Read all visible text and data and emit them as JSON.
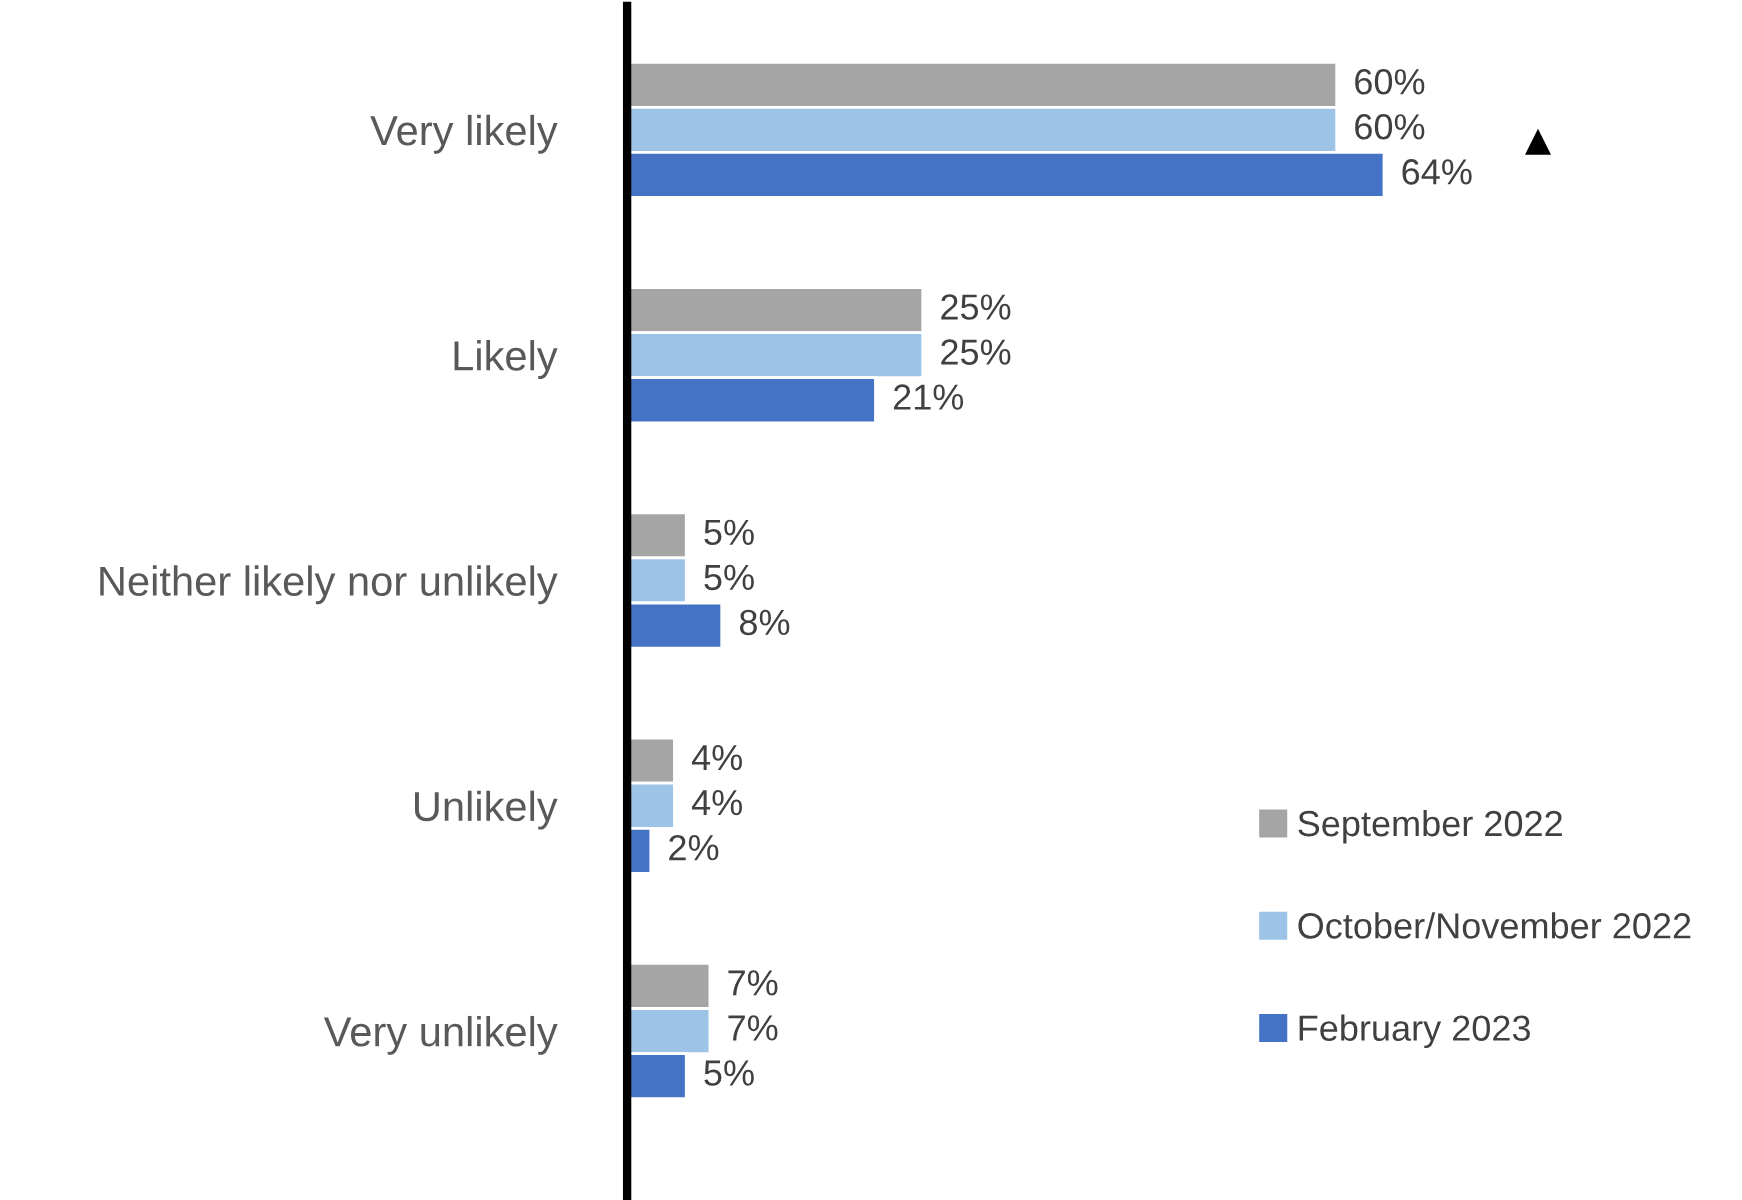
{
  "chart_data": {
    "type": "bar",
    "orientation": "horizontal",
    "categories": [
      "Very likely",
      "Likely",
      "Neither likely nor unlikely",
      "Unlikely",
      "Very unlikely"
    ],
    "series": [
      {
        "name": "September 2022",
        "color": "#a5a5a5",
        "values": [
          60,
          25,
          5,
          4,
          7
        ],
        "value_labels": [
          "60%",
          "25%",
          "5%",
          "4%",
          "7%"
        ]
      },
      {
        "name": "October/November 2022",
        "color": "#9dc3e6",
        "values": [
          60,
          25,
          5,
          4,
          7
        ],
        "value_labels": [
          "60%",
          "25%",
          "5%",
          "4%",
          "7%"
        ]
      },
      {
        "name": "February 2023",
        "color": "#4472c4",
        "values": [
          64,
          21,
          8,
          2,
          5
        ],
        "value_labels": [
          "64%",
          "21%",
          "8%",
          "2%",
          "5%"
        ]
      }
    ],
    "annotations": [
      "▲"
    ],
    "legend": "right"
  }
}
